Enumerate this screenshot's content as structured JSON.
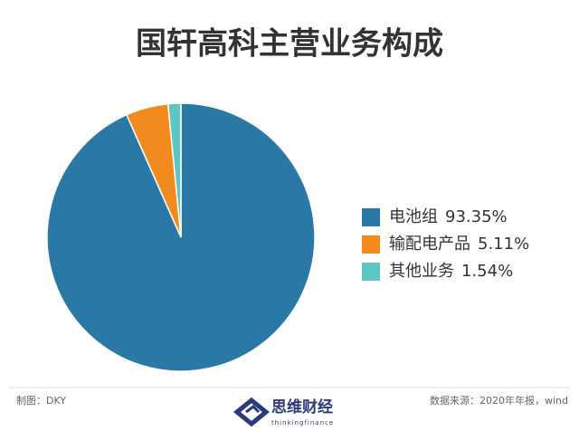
{
  "chart_data": {
    "type": "pie",
    "title": "国轩高科主营业务构成",
    "categories": [
      "电池组",
      "输配电产品",
      "其他业务"
    ],
    "values": [
      93.35,
      5.11,
      1.54
    ],
    "value_labels": [
      "93.35%",
      "5.11%",
      "1.54%"
    ],
    "colors": [
      "#2a78a6",
      "#f28b1e",
      "#5ec6c2"
    ],
    "legend": "right"
  },
  "footer": {
    "author": "制图：DKY",
    "source": "数据来源：2020年年报，wind",
    "logo": "思维财经",
    "logo_sub": "thinkingfinance"
  }
}
